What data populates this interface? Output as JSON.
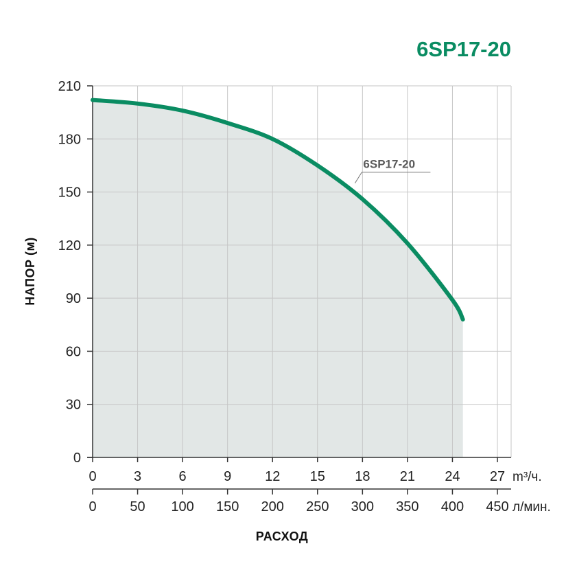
{
  "chart_data": {
    "type": "area",
    "title": "6SP17-20",
    "xlabel": "РАСХОД",
    "ylabel": "НАПОР (м)",
    "x_unit_primary": "m³/ч.",
    "x_unit_secondary": "л/мин.",
    "xlim": [
      0,
      27
    ],
    "ylim": [
      0,
      210
    ],
    "x_ticks": [
      "0",
      "3",
      "6",
      "9",
      "12",
      "15",
      "18",
      "21",
      "24",
      "27"
    ],
    "x_ticks_secondary": [
      "0",
      "50",
      "100",
      "150",
      "200",
      "250",
      "300",
      "350",
      "400",
      "450"
    ],
    "x_ticks_secondary_max": 450,
    "y_ticks": [
      "0",
      "30",
      "60",
      "90",
      "120",
      "150",
      "180",
      "210"
    ],
    "grid": true,
    "series": [
      {
        "name": "6SP17-20",
        "x": [
          0,
          3,
          6,
          9,
          12,
          15,
          18,
          21,
          24,
          24.7
        ],
        "y": [
          202,
          200,
          196,
          189,
          180,
          165,
          146,
          121,
          89,
          78
        ]
      }
    ],
    "colors": {
      "curve": "#0a8c62",
      "title": "#0a8c62",
      "fill": "#e2e7e6",
      "grid": "#c6c6c6",
      "axis": "#333333"
    }
  }
}
